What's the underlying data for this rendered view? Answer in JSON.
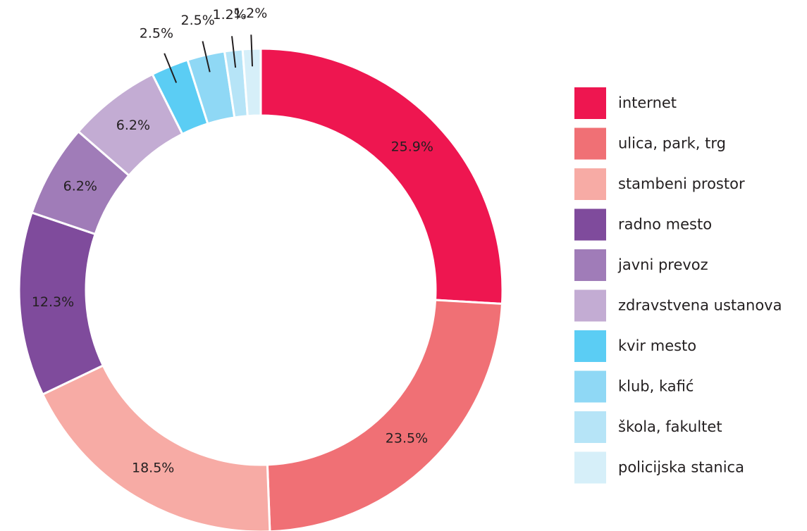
{
  "chart_data": {
    "type": "pie",
    "categories": [
      "internet",
      "ulica, park, trg",
      "stambeni prostor",
      "radno mesto",
      "javni prevoz",
      "zdravstvena ustanova",
      "kvir mesto",
      "klub, kafić",
      "škola, fakultet",
      "policijska stanica"
    ],
    "values": [
      25.9,
      23.5,
      18.5,
      12.3,
      6.2,
      6.2,
      2.5,
      2.5,
      1.2,
      1.2
    ],
    "value_labels": [
      "25.9%",
      "23.5%",
      "18.5%",
      "12.3%",
      "6.2%",
      "6.2%",
      "2.5%",
      "2.5%",
      "1.2%",
      "1.2%"
    ],
    "colors": [
      "#ee1650",
      "#f07075",
      "#f7aba5",
      "#7f4b9c",
      "#a07cb8",
      "#c3acd3",
      "#5bcdf4",
      "#8fd8f5",
      "#b6e4f7",
      "#d6eff9"
    ],
    "donut": true,
    "legend": "right"
  }
}
